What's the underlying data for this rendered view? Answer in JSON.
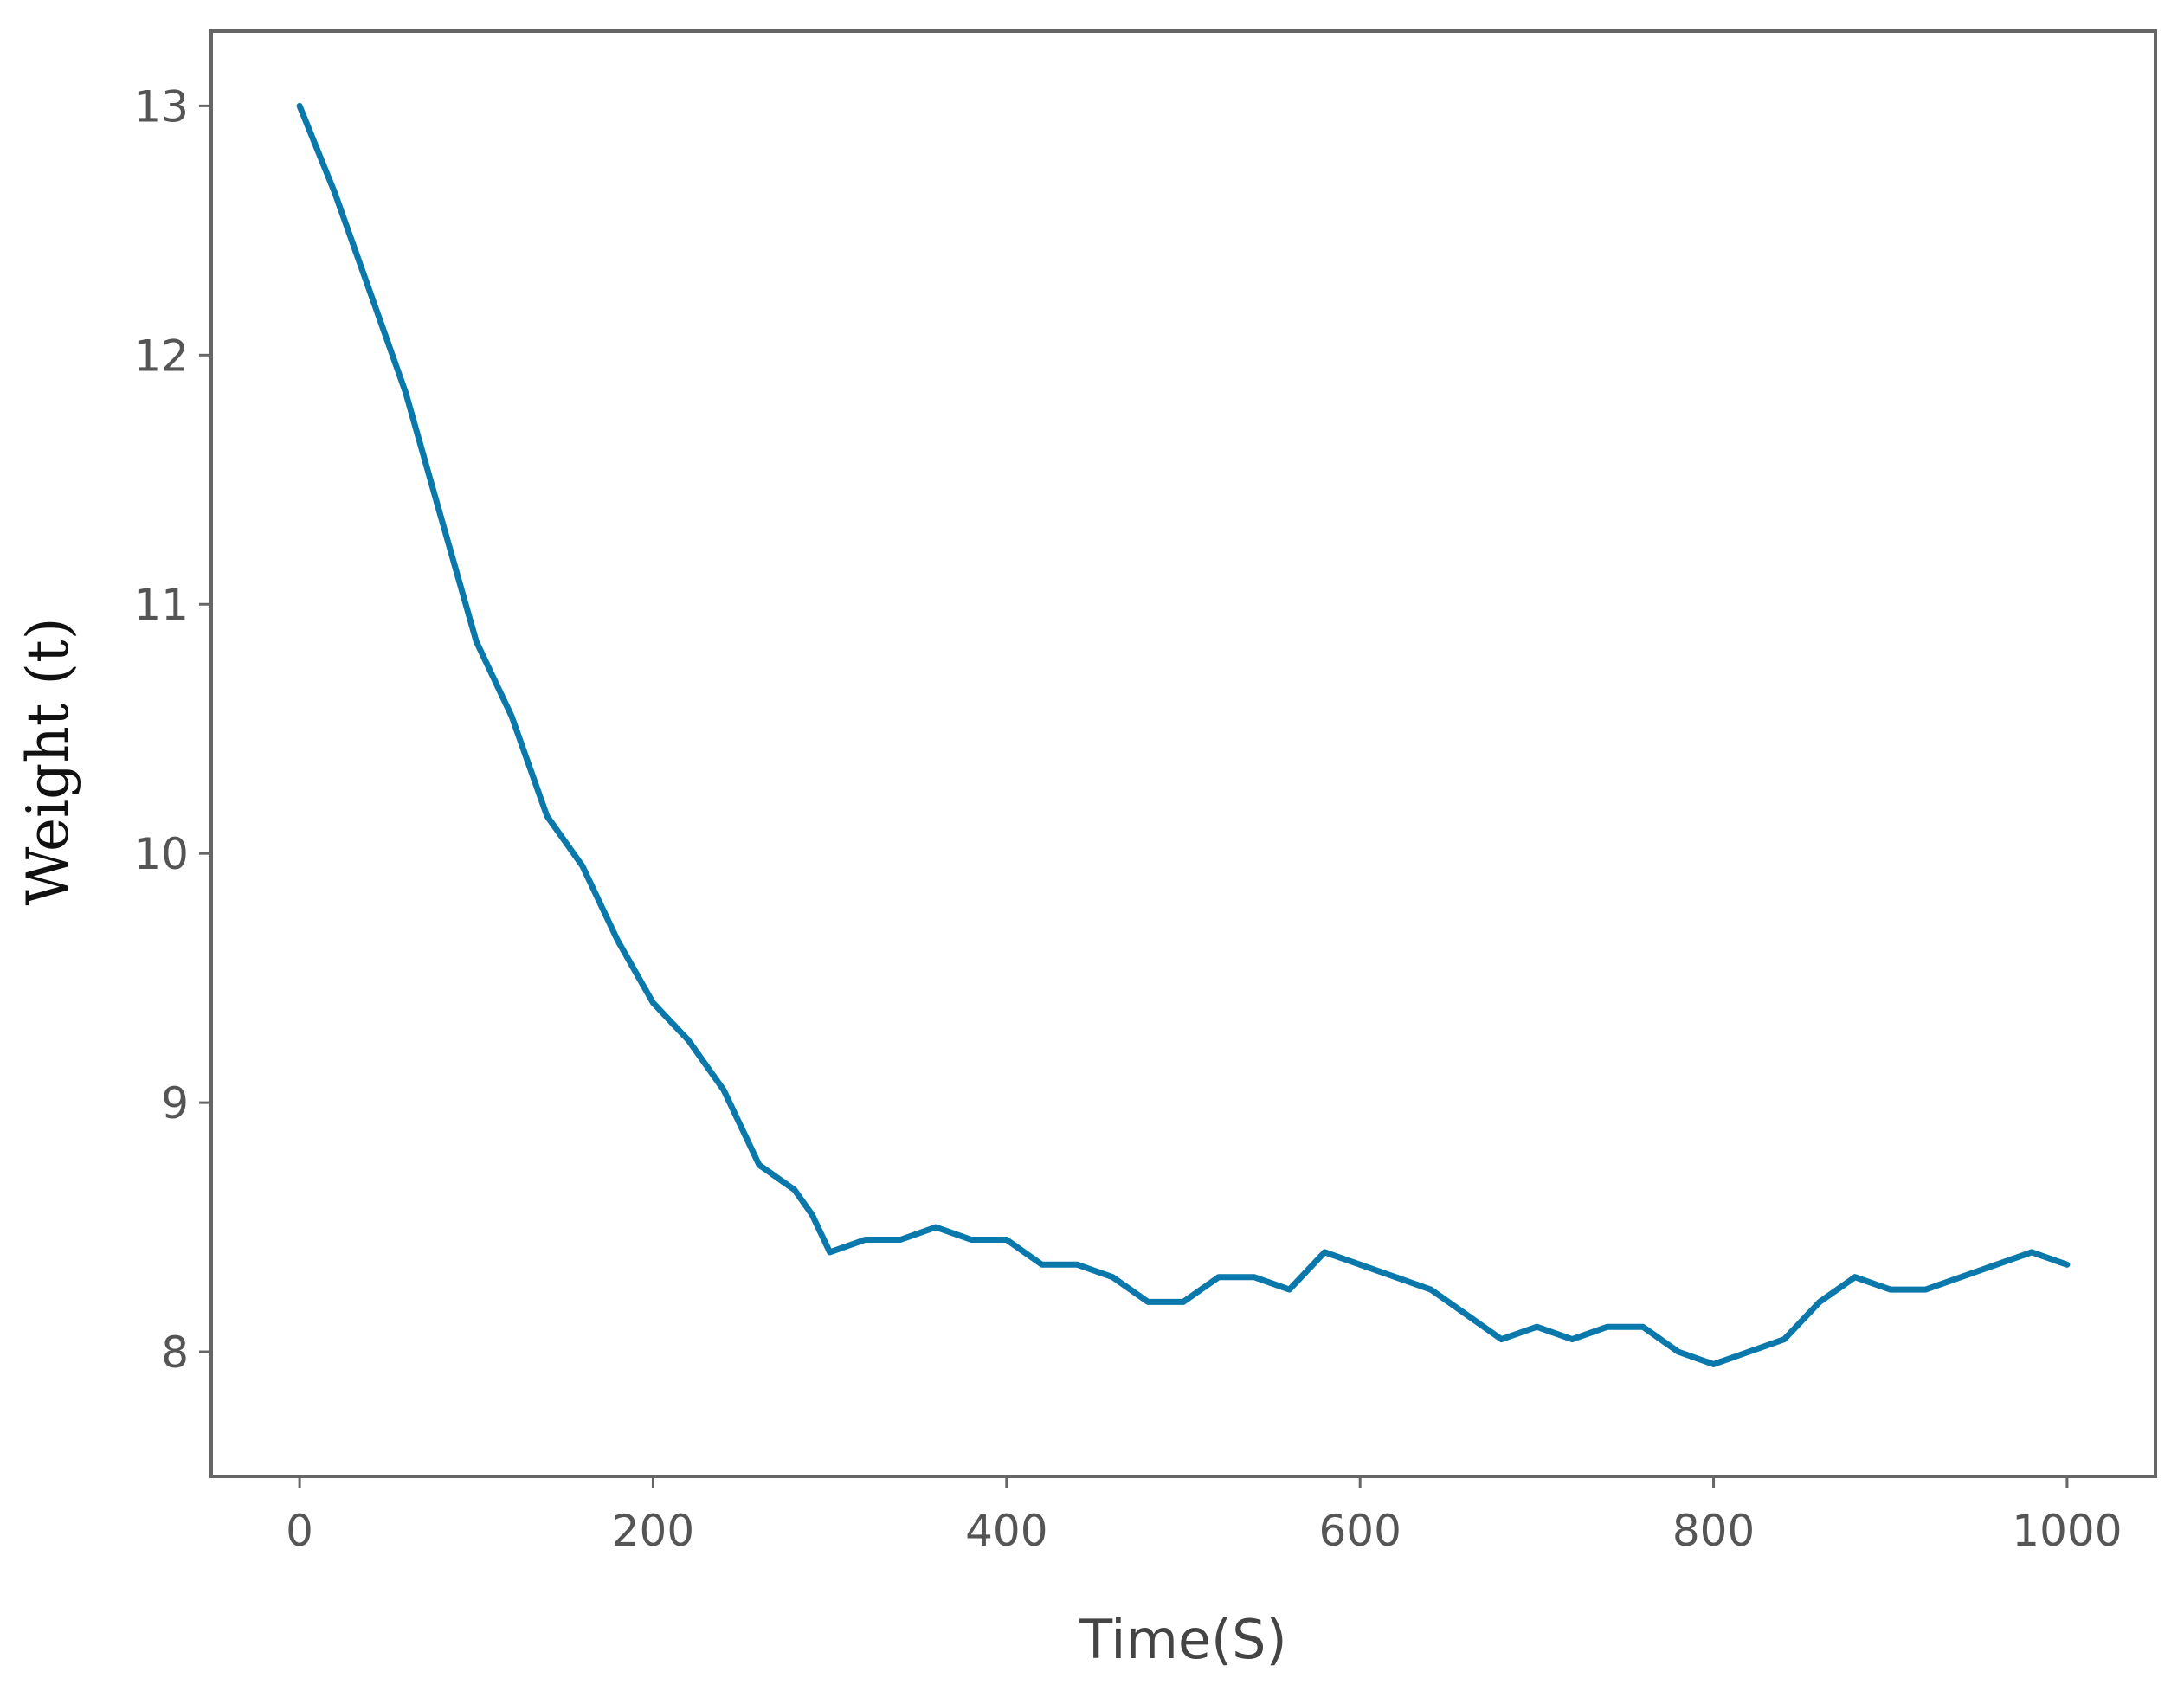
{
  "chart_data": {
    "type": "line",
    "title": "",
    "xlabel": "Time(S)",
    "ylabel": "Weight (t)",
    "xlim": [
      -50,
      1050
    ],
    "ylim": [
      7.5,
      13.3
    ],
    "xticks": [
      0,
      200,
      400,
      600,
      800,
      1000
    ],
    "yticks": [
      8,
      9,
      10,
      11,
      12,
      13
    ],
    "xtick_labels": [
      "0",
      "200",
      "400",
      "600",
      "800",
      "1000"
    ],
    "ytick_labels": [
      "8",
      "9",
      "10",
      "11",
      "12",
      "13"
    ],
    "grid": false,
    "legend": "none",
    "colors": {
      "line": "#0a78aa",
      "frame": "#666666",
      "text": "#555555"
    },
    "series": [
      {
        "x": [
          0,
          20,
          40,
          60,
          80,
          100,
          120,
          140,
          160,
          180,
          200,
          220,
          240,
          260,
          280,
          290,
          300,
          320,
          340,
          360,
          380,
          400,
          420,
          440,
          460,
          480,
          500,
          520,
          540,
          560,
          580,
          600,
          620,
          640,
          660,
          680,
          700,
          720,
          740,
          760,
          780,
          800,
          820,
          840,
          860,
          880,
          900,
          920,
          940,
          960,
          980,
          1000
        ],
        "values": [
          13.0,
          12.65,
          12.25,
          11.85,
          11.35,
          10.85,
          10.55,
          10.15,
          9.95,
          9.65,
          9.4,
          9.25,
          9.05,
          8.75,
          8.65,
          8.55,
          8.4,
          8.45,
          8.45,
          8.5,
          8.45,
          8.45,
          8.35,
          8.35,
          8.3,
          8.2,
          8.2,
          8.3,
          8.3,
          8.25,
          8.4,
          8.35,
          8.3,
          8.25,
          8.15,
          8.05,
          8.1,
          8.05,
          8.1,
          8.1,
          8.0,
          7.95,
          8.0,
          8.05,
          8.2,
          8.3,
          8.25,
          8.25,
          8.3,
          8.35,
          8.4,
          8.35
        ]
      }
    ]
  }
}
